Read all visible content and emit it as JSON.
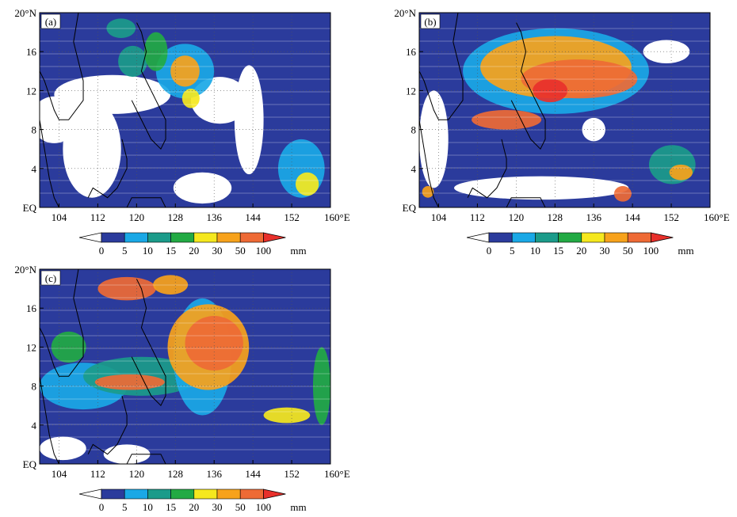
{
  "units": "mm",
  "colorbar": {
    "levels": [
      "0",
      "5",
      "10",
      "15",
      "20",
      "30",
      "50",
      "100"
    ],
    "colors": [
      "#ffffff",
      "#2b3b9c",
      "#1aa8e6",
      "#1b9b8a",
      "#22aa44",
      "#f5e81e",
      "#f7a21b",
      "#ee6a35",
      "#e8302b"
    ]
  },
  "axes": {
    "x_ticks": [
      "104",
      "112",
      "120",
      "128",
      "136",
      "144",
      "152",
      "160°E"
    ],
    "y_ticks": [
      "20°N",
      "16",
      "12",
      "8",
      "4",
      "EQ"
    ],
    "lon_range": [
      100,
      160
    ],
    "lat_range": [
      0,
      20
    ]
  },
  "panels": [
    {
      "label": "(a)"
    },
    {
      "label": "(b)"
    },
    {
      "label": "(c)"
    }
  ]
}
